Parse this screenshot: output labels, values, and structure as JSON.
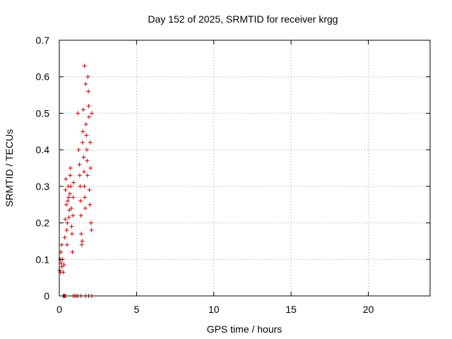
{
  "chart_data": {
    "type": "scatter",
    "title": "Day 152 of 2025, SRMTID for receiver krgg",
    "xlabel": "GPS time / hours",
    "ylabel": "SRMTID / TECUs",
    "xlim": [
      0,
      24
    ],
    "ylim": [
      0,
      0.7
    ],
    "xticks": [
      0,
      5,
      10,
      15,
      20
    ],
    "xtick_labels": [
      "0",
      "5",
      "10",
      "15",
      "20"
    ],
    "yticks": [
      0,
      0.1,
      0.2,
      0.3,
      0.4,
      0.5,
      0.6,
      0.7
    ],
    "ytick_labels": [
      "0",
      "0.1",
      "0.2",
      "0.3",
      "0.4",
      "0.5",
      "0.6",
      "0.7"
    ],
    "grid": true,
    "marker": "+",
    "color": "#cc0000",
    "series": [
      {
        "name": "SRMTID",
        "points": [
          [
            0.02,
            0.07
          ],
          [
            0.05,
            0.1
          ],
          [
            0.07,
            0.065
          ],
          [
            0.1,
            0.12
          ],
          [
            0.12,
            0.09
          ],
          [
            0.15,
            0.14
          ],
          [
            0.17,
            0.08
          ],
          [
            0.2,
            0.1
          ],
          [
            0.25,
            0.065
          ],
          [
            0.3,
            0.085
          ],
          [
            0.35,
            0.16
          ],
          [
            0.38,
            0.21
          ],
          [
            0.4,
            0.29
          ],
          [
            0.42,
            0.32
          ],
          [
            0.45,
            0.25
          ],
          [
            0.48,
            0.18
          ],
          [
            0.5,
            0.14
          ],
          [
            0.52,
            0.2
          ],
          [
            0.55,
            0.26
          ],
          [
            0.58,
            0.3
          ],
          [
            0.6,
            0.27
          ],
          [
            0.62,
            0.215
          ],
          [
            0.65,
            0.235
          ],
          [
            0.68,
            0.28
          ],
          [
            0.7,
            0.33
          ],
          [
            0.72,
            0.35
          ],
          [
            0.75,
            0.3
          ],
          [
            0.78,
            0.24
          ],
          [
            0.8,
            0.19
          ],
          [
            0.82,
            0.17
          ],
          [
            0.85,
            0.12
          ],
          [
            0.88,
            0.22
          ],
          [
            0.9,
            0.27
          ],
          [
            0.92,
            0.31
          ],
          [
            1.2,
            0.5
          ],
          [
            1.25,
            0.4
          ],
          [
            1.3,
            0.36
          ],
          [
            1.32,
            0.33
          ],
          [
            1.35,
            0.3
          ],
          [
            1.38,
            0.26
          ],
          [
            1.4,
            0.22
          ],
          [
            1.42,
            0.17
          ],
          [
            1.45,
            0.14
          ],
          [
            1.48,
            0.15
          ],
          [
            1.5,
            0.42
          ],
          [
            1.52,
            0.45
          ],
          [
            1.55,
            0.51
          ],
          [
            1.58,
            0.38
          ],
          [
            1.6,
            0.34
          ],
          [
            1.62,
            0.3
          ],
          [
            1.63,
            0.63
          ],
          [
            1.65,
            0.27
          ],
          [
            1.68,
            0.24
          ],
          [
            1.7,
            0.58
          ],
          [
            1.72,
            0.47
          ],
          [
            1.75,
            0.44
          ],
          [
            1.78,
            0.4
          ],
          [
            1.8,
            0.37
          ],
          [
            1.82,
            0.33
          ],
          [
            1.85,
            0.6
          ],
          [
            1.88,
            0.56
          ],
          [
            1.9,
            0.52
          ],
          [
            1.92,
            0.49
          ],
          [
            1.95,
            0.29
          ],
          [
            1.98,
            0.25
          ],
          [
            2.0,
            0.42
          ],
          [
            2.02,
            0.35
          ],
          [
            2.05,
            0.2
          ],
          [
            2.08,
            0.18
          ],
          [
            2.1,
            0.5
          ],
          [
            0.25,
            0.0
          ],
          [
            0.3,
            0.0
          ],
          [
            0.35,
            0.0
          ],
          [
            0.4,
            0.0
          ],
          [
            0.9,
            0.0
          ],
          [
            1.0,
            0.0
          ],
          [
            1.1,
            0.0
          ],
          [
            1.2,
            0.0
          ],
          [
            1.4,
            0.0
          ],
          [
            1.7,
            0.0
          ],
          [
            1.9,
            0.0
          ],
          [
            2.1,
            0.0
          ]
        ]
      }
    ]
  }
}
